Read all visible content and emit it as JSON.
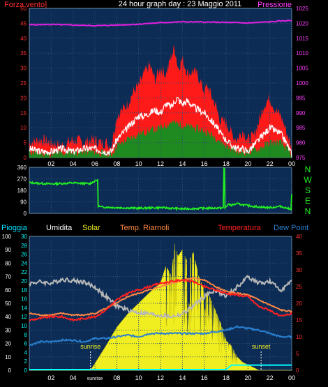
{
  "header": {
    "left_title": "Forza vento]",
    "title": "24 hour graph day : 23 Maggio 2011",
    "right_title": "Pressione"
  },
  "colors": {
    "panel_bg": "#0c2c55",
    "grid": "#2c5070",
    "gust": "#ff1a1a",
    "avg_wind": "#ffffff",
    "wind_green": "#1f8a1f",
    "pressure": "#e020e0",
    "direction": "#22ee22",
    "solar": "#f0ee20",
    "humidity": "#b8b8b8",
    "temperature": "#ff2020",
    "temp_riarnoli": "#ff8844",
    "dew_point": "#2a7fd0",
    "rain": "#00ffff",
    "axis_left_wind": "#ff3030",
    "axis_left_rain": "#ffffff",
    "axis_right_temp": "#ff3030",
    "axis_right_pressure": "#ff40ff"
  },
  "chart_data": [
    {
      "id": "wind_pressure",
      "type": "area",
      "title": "24 hour graph day : 23 Maggio 2011",
      "ylabel_left": "Forza vento]",
      "ylabel_right": "Pressione",
      "ylim_left": [
        0,
        50
      ],
      "yticks_left": [
        "0",
        "5",
        "10",
        "15",
        "20",
        "25",
        "30",
        "35",
        "40",
        "45",
        "50"
      ],
      "ylim_right": [
        975,
        1025
      ],
      "yticks_right": [
        "975",
        "980",
        "985",
        "990",
        "995",
        "1000",
        "1005",
        "1010",
        "1015",
        "1020",
        "1025"
      ],
      "xlim": [
        0,
        24
      ],
      "xticks": [
        "02",
        "04",
        "06",
        "08",
        "10",
        "12",
        "14",
        "16",
        "18",
        "20",
        "22",
        "00"
      ],
      "series": [
        {
          "role": "gust",
          "values_x": [
            0,
            1,
            2,
            3,
            4,
            5,
            5.8,
            6.5,
            7,
            7.5,
            8,
            8.5,
            9,
            9.5,
            10,
            10.5,
            11,
            11.5,
            12,
            12.5,
            13,
            13.3,
            13.6,
            14,
            14.5,
            15,
            15.5,
            16,
            16.3,
            16.6,
            17,
            17.5,
            18,
            18.5,
            19,
            19.5,
            20,
            20.5,
            21,
            21.5,
            22,
            22.5,
            23,
            23.5,
            24
          ],
          "values": [
            5,
            6,
            5,
            4,
            6,
            5,
            6,
            5,
            5,
            4,
            14,
            16,
            18,
            22,
            24,
            28,
            31,
            26,
            30,
            28,
            34,
            37,
            30,
            33,
            28,
            29,
            27,
            22,
            24,
            21,
            18,
            12,
            12,
            8,
            6,
            9,
            6,
            7,
            12,
            18,
            20,
            16,
            14,
            9,
            3
          ]
        },
        {
          "role": "avg_wind",
          "values_x": [
            0,
            1,
            2,
            3,
            4,
            5,
            6,
            7,
            7.5,
            8,
            8.5,
            9,
            9.5,
            10,
            10.5,
            11,
            11.5,
            12,
            12.5,
            13,
            13.5,
            14,
            14.5,
            15,
            15.5,
            16,
            16.5,
            17,
            17.5,
            18,
            18.5,
            19,
            19.5,
            20,
            20.5,
            21,
            21.5,
            22,
            22.5,
            23,
            23.5,
            24
          ],
          "values": [
            3,
            2,
            2,
            3,
            2,
            3,
            3,
            2,
            2,
            6,
            8,
            10,
            12,
            14,
            14,
            15,
            16,
            15,
            18,
            17,
            20,
            18,
            19,
            17,
            16,
            15,
            13,
            11,
            8,
            6,
            4,
            3,
            3,
            2,
            4,
            6,
            8,
            10,
            9,
            8,
            5,
            1
          ]
        },
        {
          "role": "wind_green",
          "values_x": [
            0,
            2,
            4,
            6,
            7.5,
            8,
            9,
            10,
            11,
            12,
            13,
            14,
            15,
            16,
            17,
            18,
            19,
            20,
            21,
            22,
            23,
            24
          ],
          "values": [
            2,
            1,
            2,
            2,
            1,
            4,
            6,
            8,
            9,
            10,
            12,
            11,
            10,
            9,
            7,
            4,
            2,
            2,
            3,
            5,
            5,
            1
          ]
        },
        {
          "role": "pressure",
          "name": "Pressione",
          "values_x": [
            0,
            2,
            4,
            6,
            8,
            10,
            12,
            14,
            16,
            18,
            20,
            22,
            24
          ],
          "values": [
            1019.5,
            1019.6,
            1019.4,
            1019.2,
            1019.4,
            1019.7,
            1020.2,
            1020.5,
            1020.4,
            1020.3,
            1020.1,
            1020.5,
            1021.0
          ]
        }
      ]
    },
    {
      "id": "direction",
      "type": "line",
      "ylim": [
        0,
        360
      ],
      "yticks": [
        "0",
        "90",
        "180",
        "270",
        "360"
      ],
      "right_labels": [
        "N",
        "W",
        "S",
        "E",
        "N"
      ],
      "series": [
        {
          "role": "direction",
          "values_x": [
            0,
            2,
            4,
            5.5,
            6.2,
            6.3,
            6.5,
            8,
            10,
            12,
            14,
            16,
            17.5,
            17.8,
            17.9,
            18.0,
            18.2,
            18.5,
            19,
            20,
            21,
            22,
            23,
            23.8,
            24
          ],
          "values": [
            240,
            230,
            238,
            232,
            260,
            60,
            50,
            45,
            40,
            45,
            35,
            40,
            42,
            350,
            40,
            55,
            70,
            65,
            75,
            60,
            50,
            45,
            55,
            35,
            150
          ]
        }
      ]
    },
    {
      "id": "weather",
      "type": "area",
      "legend": [
        "Pioggia",
        "Umidita",
        "Solar",
        "Temp. Riarnoli",
        "Temperatura",
        "Dew Point"
      ],
      "ylim_left_humidity": [
        0,
        100
      ],
      "yticks_left_humidity": [
        "0",
        "10",
        "20",
        "30",
        "40",
        "50",
        "60",
        "70",
        "80",
        "90",
        "100"
      ],
      "ylim_left_rain": [
        0,
        30
      ],
      "yticks_left_rain": [
        "0",
        "2",
        "4",
        "6",
        "8",
        "10",
        "12",
        "14",
        "16",
        "18",
        "20",
        "22",
        "24",
        "26",
        "28",
        "30"
      ],
      "ylim_right": [
        0,
        40
      ],
      "yticks_right": [
        "0",
        "5",
        "10",
        "15",
        "20",
        "25",
        "30",
        "35",
        "40"
      ],
      "xticks": [
        "02",
        "04",
        "sunrise",
        "08",
        "10",
        "12",
        "14",
        "16",
        "18",
        "20",
        "22",
        "00"
      ],
      "annotations": [
        "sunrise",
        "sunset"
      ],
      "series": [
        {
          "role": "solar",
          "name": "Solar",
          "values_x": [
            0,
            5.6,
            6,
            7,
            8,
            9,
            10,
            11,
            12,
            12.5,
            13,
            13.3,
            13.6,
            14,
            14.5,
            15,
            15.5,
            16,
            16.5,
            17,
            17.5,
            18,
            18.5,
            19,
            19.5,
            20,
            20.5,
            21,
            24
          ],
          "values": [
            0,
            0,
            5,
            18,
            32,
            42,
            50,
            58,
            65,
            78,
            70,
            95,
            85,
            90,
            80,
            88,
            70,
            60,
            55,
            45,
            35,
            22,
            18,
            10,
            6,
            4,
            2,
            0,
            0
          ]
        },
        {
          "role": "humidity",
          "name": "Umidita",
          "values_x": [
            0,
            1,
            2,
            3,
            4,
            5,
            6,
            7,
            8,
            9,
            10,
            11,
            12,
            13,
            14,
            15,
            16,
            17,
            18,
            19,
            20,
            21,
            22,
            23,
            24
          ],
          "values": [
            65,
            66,
            65,
            68,
            67,
            66,
            62,
            55,
            48,
            45,
            43,
            42,
            41,
            40,
            42,
            48,
            55,
            60,
            55,
            62,
            70,
            65,
            66,
            60,
            66
          ]
        },
        {
          "role": "temperature",
          "name": "Temperatura",
          "values_x": [
            0,
            1,
            2,
            3,
            4,
            5,
            6,
            7,
            8,
            9,
            10,
            11,
            12,
            13,
            14,
            15,
            16,
            17,
            18,
            19,
            20,
            21,
            22,
            23,
            24
          ],
          "values": [
            15,
            15.5,
            16,
            16,
            15,
            15.5,
            16,
            18,
            21,
            23,
            24,
            25,
            26,
            26.5,
            27,
            26.5,
            25,
            24,
            23,
            22.5,
            22,
            19,
            18,
            16,
            17
          ]
        },
        {
          "role": "temp_riarnoli",
          "name": "Temp. Riarnoli",
          "values_x": [
            0,
            1,
            2,
            3,
            4,
            5,
            6,
            7,
            8,
            9,
            10,
            11,
            12,
            13,
            14,
            15,
            16,
            17,
            18,
            19,
            20,
            21,
            22,
            23,
            24
          ],
          "values": [
            17,
            16.5,
            16.5,
            17,
            16.5,
            16.5,
            17,
            18.5,
            20,
            22,
            23,
            24,
            25,
            26,
            27,
            27.5,
            27,
            25,
            23.5,
            23,
            22.5,
            21,
            19.5,
            18,
            17.5
          ]
        },
        {
          "role": "dew_point",
          "name": "Dew Point",
          "values_x": [
            0,
            1,
            2,
            3,
            4,
            5,
            6,
            7,
            8,
            9,
            10,
            11,
            12,
            13,
            14,
            15,
            16,
            17,
            18,
            19,
            20,
            21,
            22,
            23,
            24
          ],
          "values": [
            7.5,
            8.5,
            8.5,
            9,
            9,
            8.5,
            9.5,
            9.5,
            10,
            10.5,
            10,
            11,
            11,
            11,
            11,
            11,
            11,
            11.5,
            12,
            13,
            12.5,
            12,
            11,
            10,
            10
          ]
        },
        {
          "role": "rain",
          "name": "Pioggia",
          "values_x": [
            0,
            18,
            18.5,
            20.5,
            21,
            24
          ],
          "values": [
            0,
            0,
            1,
            1,
            1,
            1
          ]
        }
      ]
    }
  ]
}
